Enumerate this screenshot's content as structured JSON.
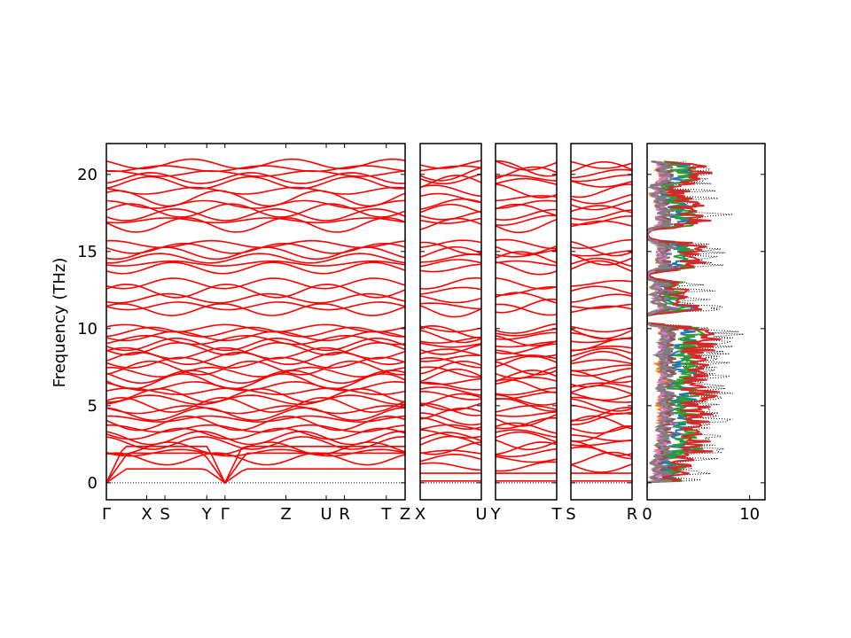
{
  "chart_data": {
    "type": "line",
    "ylabel": "Frequency (THz)",
    "ylim": [
      -1.1,
      22.0
    ],
    "yticks": [
      0,
      5,
      10,
      15,
      20
    ],
    "band_color": "#ff0000",
    "zero_line_color": "#00008b",
    "panels": [
      {
        "kind": "bands",
        "xlabels": [
          "Γ",
          "X",
          "S",
          "Y",
          "Γ",
          "Z",
          "U",
          "R",
          "T",
          "Z"
        ],
        "xticks": [
          0.0,
          0.135,
          0.196,
          0.336,
          0.397,
          0.601,
          0.736,
          0.797,
          0.937,
          1.0
        ]
      },
      {
        "kind": "bands",
        "xlabels": [
          "X",
          "U"
        ],
        "xticks": [
          0.0,
          1.0
        ]
      },
      {
        "kind": "bands",
        "xlabels": [
          "Y",
          "T"
        ],
        "xticks": [
          0.0,
          1.0
        ]
      },
      {
        "kind": "bands",
        "xlabels": [
          "S",
          "R"
        ],
        "xticks": [
          0.0,
          1.0
        ]
      },
      {
        "kind": "dos",
        "xlim": [
          0,
          11.5
        ],
        "xticks": [
          0,
          10
        ],
        "xticklabels": [
          "0",
          "10"
        ],
        "series": [
          {
            "color": "#000000",
            "style": "dotted",
            "max": 11.5
          },
          {
            "color": "#1f77b4",
            "max": 5.5
          },
          {
            "color": "#ff7f0e",
            "max": 4.0
          },
          {
            "color": "#2ca02c",
            "max": 7.3
          },
          {
            "color": "#d62728",
            "max": 7.5
          },
          {
            "color": "#9467bd",
            "max": 4.6
          },
          {
            "color": "#8c564b",
            "max": 3.8
          },
          {
            "color": "#e377c2",
            "max": 2.4
          },
          {
            "color": "#7f7f7f",
            "max": 4.3
          }
        ]
      }
    ],
    "band_levels": [
      0.12,
      0.62,
      1.06,
      1.55,
      1.95,
      2.24,
      2.58,
      2.91,
      3.18,
      3.52,
      3.86,
      4.14,
      4.46,
      4.75,
      5.05,
      5.38,
      5.66,
      5.93,
      6.27,
      6.58,
      6.88,
      7.18,
      7.45,
      7.79,
      8.07,
      8.4,
      8.69,
      8.98,
      9.26,
      9.52,
      9.78,
      10.02,
      11.23,
      11.47,
      11.96,
      12.44,
      12.93,
      13.93,
      14.22,
      14.56,
      14.89,
      15.2,
      15.48,
      16.72,
      17.02,
      17.38,
      17.66,
      18.05,
      18.45,
      18.94,
      19.46,
      19.76,
      20.05,
      20.38,
      20.68
    ]
  }
}
